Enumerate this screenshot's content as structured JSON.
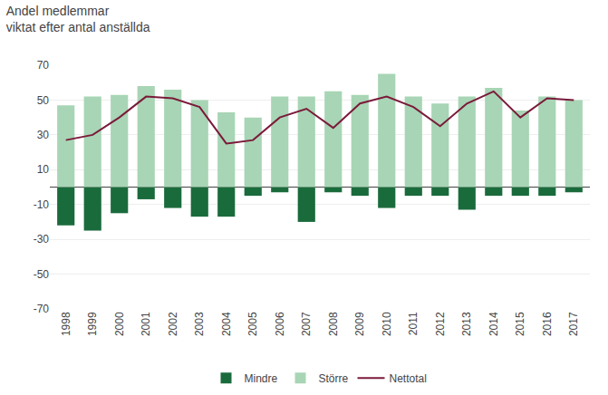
{
  "chart_data": {
    "type": "bar",
    "title": "Andel medlemmar",
    "subtitle": "viktat efter antal anställda",
    "categories": [
      "1998",
      "1999",
      "2000",
      "2001",
      "2002",
      "2003",
      "2004",
      "2005",
      "2006",
      "2007",
      "2008",
      "2009",
      "2010",
      "2011",
      "2012",
      "2013",
      "2014",
      "2015",
      "2016",
      "2017"
    ],
    "series": [
      {
        "name": "Mindre",
        "color": "#1a6b3c",
        "values": [
          -22,
          -25,
          -15,
          -7,
          -12,
          -17,
          -17,
          -5,
          -3,
          -20,
          -3,
          -5,
          -12,
          -5,
          -5,
          -13,
          -5,
          -5,
          -5,
          -3
        ]
      },
      {
        "name": "Större",
        "color": "#a8d5b5",
        "values": [
          47,
          52,
          53,
          58,
          56,
          50,
          43,
          40,
          52,
          52,
          55,
          53,
          65,
          52,
          48,
          52,
          57,
          44,
          52,
          50
        ]
      },
      {
        "name": "Nettotal",
        "type": "line",
        "color": "#7b1a3a",
        "values": [
          27,
          30,
          40,
          52,
          51,
          46,
          25,
          27,
          40,
          45,
          34,
          48,
          52,
          46,
          35,
          48,
          55,
          40,
          51,
          50
        ]
      }
    ],
    "ylim": [
      -70,
      70
    ],
    "yticks": [
      -70,
      -50,
      -30,
      -10,
      10,
      30,
      50,
      70
    ],
    "grid": true,
    "legend": "bottom"
  }
}
